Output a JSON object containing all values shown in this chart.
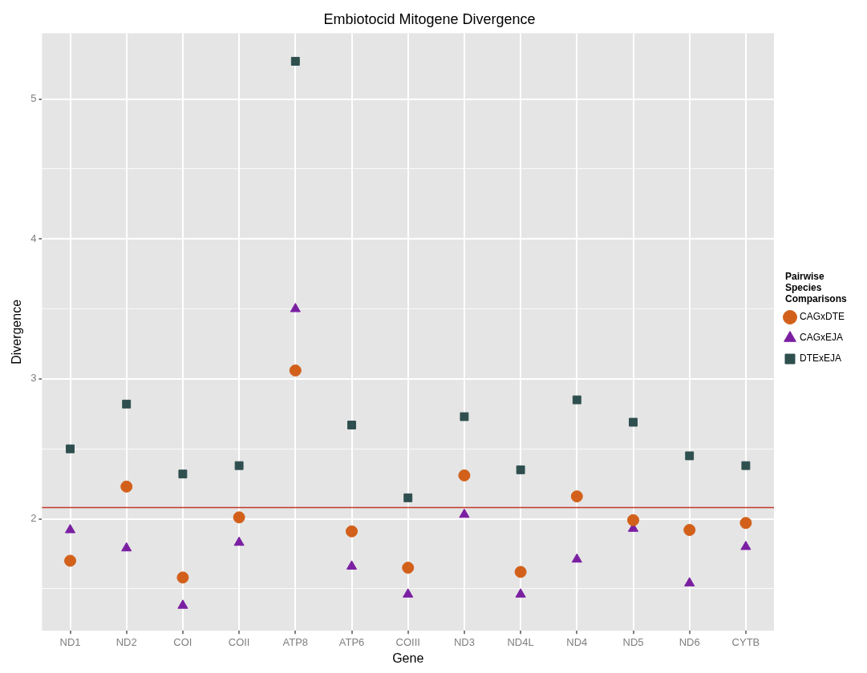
{
  "chart_data": {
    "type": "scatter",
    "title": "Embiotocid Mitogene Divergence",
    "xlabel": "Gene",
    "ylabel": "Divergence",
    "legend_title": "Pairwise Species Comparisons",
    "categories": [
      "ND1",
      "ND2",
      "COI",
      "COII",
      "ATP8",
      "ATP6",
      "COIII",
      "ND3",
      "ND4L",
      "ND4",
      "ND5",
      "ND6",
      "CYTB"
    ],
    "series": [
      {
        "name": "CAGxDTE",
        "color": "#d2601a",
        "marker": "circle",
        "values": [
          1.7,
          2.23,
          1.58,
          2.01,
          3.06,
          1.91,
          1.65,
          2.31,
          1.62,
          2.16,
          1.99,
          1.92,
          1.97
        ]
      },
      {
        "name": "CAGxEJA",
        "color": "#7b1fa2",
        "marker": "triangle",
        "values": [
          1.92,
          1.79,
          1.38,
          1.83,
          3.5,
          1.66,
          1.46,
          2.03,
          1.46,
          1.71,
          1.93,
          1.54,
          1.8
        ]
      },
      {
        "name": "DTExEJA",
        "color": "#2f4f4f",
        "marker": "square",
        "values": [
          2.5,
          2.82,
          2.32,
          2.38,
          5.27,
          2.67,
          2.15,
          2.73,
          2.35,
          2.85,
          2.69,
          2.45,
          2.38
        ]
      }
    ],
    "ylim": [
      1.2,
      5.47
    ],
    "yticks": [
      {
        "value": 1.5,
        "label": null
      },
      2,
      {
        "value": 2.5,
        "label": null
      },
      3,
      {
        "value": 3.5,
        "label": null
      },
      4,
      {
        "value": 4.5,
        "label": null
      },
      5
    ],
    "ref_lines": [
      {
        "axis": "y",
        "value": 2.08,
        "color": "#c0392b"
      }
    ],
    "grid": true,
    "legend": "right"
  }
}
